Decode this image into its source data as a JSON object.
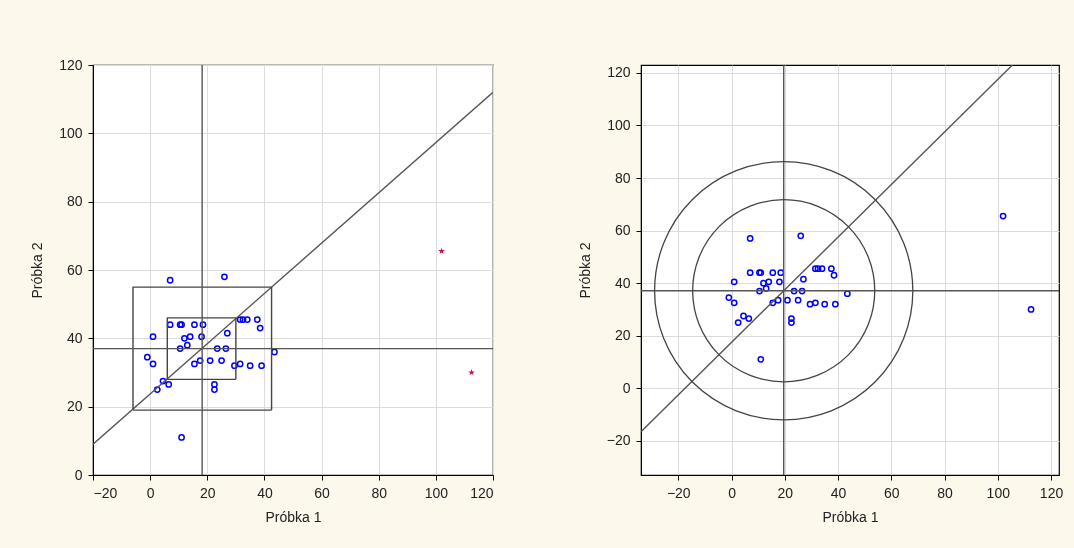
{
  "chart_data": [
    {
      "type": "scatter",
      "xlabel": "Próbka 1",
      "ylabel": "Próbka 2",
      "xlim": [
        -20,
        120
      ],
      "ylim": [
        0,
        120
      ],
      "xticks": [
        -20,
        0,
        20,
        40,
        60,
        80,
        100,
        120
      ],
      "yticks": [
        0,
        20,
        40,
        60,
        80,
        100,
        120
      ],
      "grid": true,
      "series": [
        {
          "type": "scatter",
          "marker": "circle",
          "color": "#0000ff",
          "x": [
            7,
            26,
            7,
            10.5,
            11,
            15.5,
            18.5,
            1,
            12,
            14,
            13,
            18,
            10.5,
            -1,
            1,
            4.5,
            6.5,
            2.5,
            11,
            15.5,
            17.5,
            21,
            23.5,
            26.5,
            25,
            27,
            22.5,
            22.5,
            29.5,
            31.5,
            35,
            39,
            43.5,
            31.5,
            32.5,
            34,
            37.5,
            38.5
          ],
          "values": [
            57,
            58,
            44,
            44,
            44,
            44,
            44,
            40.5,
            40,
            40.5,
            38,
            40.5,
            37,
            34.5,
            32.5,
            27.5,
            26.5,
            25,
            11,
            32.5,
            33.5,
            33.5,
            37,
            37,
            33.5,
            41.5,
            26.5,
            25,
            32,
            32.5,
            32,
            32,
            36,
            45.5,
            45.5,
            45.5,
            45.5,
            43
          ]
        },
        {
          "type": "scatter",
          "marker": "star",
          "color": "#c8105a",
          "x": [
            102,
            112.5
          ],
          "values": [
            65.5,
            30
          ]
        },
        {
          "type": "line",
          "color": "#555555",
          "x": [
            -20,
            120
          ],
          "values": [
            9,
            112
          ]
        },
        {
          "type": "line",
          "color": "#444444",
          "x": [
            -6,
            -6,
            42.5,
            42.5
          ],
          "values": [
            19,
            55,
            55,
            19
          ]
        },
        {
          "type": "line",
          "color": "#444444",
          "x": [
            -6,
            42.5
          ],
          "values": [
            19,
            19
          ]
        },
        {
          "type": "line",
          "color": "#444444",
          "x": [
            6,
            6,
            30,
            30
          ],
          "values": [
            28,
            46,
            46,
            28
          ]
        },
        {
          "type": "line",
          "color": "#444444",
          "x": [
            6,
            30
          ],
          "values": [
            28,
            28
          ]
        }
      ],
      "ref_lines": [
        {
          "axis": "x",
          "value": 18.2,
          "color": "#555555"
        },
        {
          "axis": "y",
          "value": 37,
          "color": "#555555"
        }
      ]
    },
    {
      "type": "scatter",
      "xlabel": "Próbka 1",
      "ylabel": "Próbka 2",
      "xlim": [
        -34,
        123
      ],
      "ylim": [
        -33,
        123
      ],
      "xticks": [
        -20,
        0,
        20,
        40,
        60,
        80,
        100,
        120
      ],
      "yticks": [
        -20,
        0,
        20,
        40,
        60,
        80,
        100,
        120
      ],
      "grid": true,
      "series": [
        {
          "type": "scatter",
          "marker": "circle",
          "color": "#0000ff",
          "x": [
            7,
            26,
            7,
            10.5,
            11,
            15.5,
            18.5,
            1,
            12,
            14,
            13,
            18,
            10.5,
            -1,
            1,
            4.5,
            6.5,
            2.5,
            11,
            15.5,
            17.5,
            21,
            23.5,
            26.5,
            25,
            27,
            22.5,
            22.5,
            29.5,
            31.5,
            35,
            39,
            43.5,
            31.5,
            32.5,
            34,
            37.5,
            38.5,
            102,
            112.5
          ],
          "values": [
            57,
            58,
            44,
            44,
            44,
            44,
            44,
            40.5,
            40,
            40.5,
            38,
            40.5,
            37,
            34.5,
            32.5,
            27.5,
            26.5,
            25,
            11,
            32.5,
            33.5,
            33.5,
            37,
            37,
            33.5,
            41.5,
            26.5,
            25,
            32,
            32.5,
            32,
            32,
            36,
            45.5,
            45.5,
            45.5,
            45.5,
            43,
            65.5,
            30
          ]
        },
        {
          "type": "line",
          "color": "#555555",
          "x": [
            -34,
            105.5
          ],
          "values": [
            -16.5,
            123
          ]
        }
      ],
      "ref_lines": [
        {
          "axis": "x",
          "value": 19.6,
          "color": "#555555"
        },
        {
          "axis": "y",
          "value": 37.1,
          "color": "#555555"
        }
      ]
    }
  ]
}
